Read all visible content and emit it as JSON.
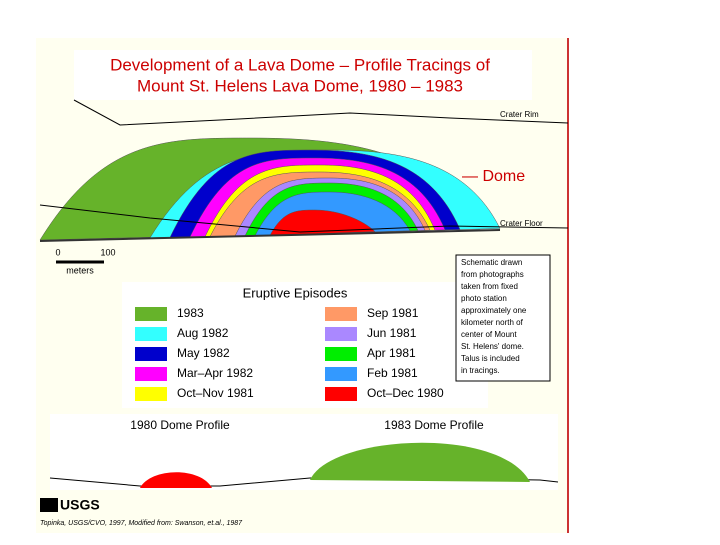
{
  "title": {
    "line1": "Development of a Lava Dome – Profile Tracings of",
    "line2": "Mount St. Helens Lava Dome, 1980 – 1983"
  },
  "profile": {
    "crater_rim": "Crater Rim",
    "dome": "— Dome",
    "crater_floor": "Crater Floor"
  },
  "scale": {
    "zero": "0",
    "hundred": "100",
    "unit": "meters"
  },
  "legend": {
    "title": "Eruptive Episodes",
    "items": [
      {
        "label": "1983",
        "color": "#66b32a"
      },
      {
        "label": "Aug 1982",
        "color": "#33ffff"
      },
      {
        "label": "May 1982",
        "color": "#0000cc"
      },
      {
        "label": "Mar–Apr 1982",
        "color": "#ff00ff"
      },
      {
        "label": "Oct–Nov 1981",
        "color": "#ffff00"
      },
      {
        "label": "Sep 1981",
        "color": "#ff9966"
      },
      {
        "label": "Jun 1981",
        "color": "#aa88ff"
      },
      {
        "label": "Apr 1981",
        "color": "#00ee00"
      },
      {
        "label": "Feb 1981",
        "color": "#3399ff"
      },
      {
        "label": "Oct–Dec 1980",
        "color": "#ff0000"
      }
    ]
  },
  "note": [
    "Schematic drawn",
    "from photographs",
    "taken from fixed",
    "photo station",
    "approximately one",
    "kilometer north of",
    "center of Mount",
    "St. Helens' dome.",
    "Talus is included",
    "in tracings."
  ],
  "bottom": {
    "left": "1980 Dome Profile",
    "right": "1983 Dome Profile"
  },
  "logo": "USGS",
  "credit": "Topinka, USGS/CVO, 1997, Modified from: Swanson, et.al., 1987"
}
